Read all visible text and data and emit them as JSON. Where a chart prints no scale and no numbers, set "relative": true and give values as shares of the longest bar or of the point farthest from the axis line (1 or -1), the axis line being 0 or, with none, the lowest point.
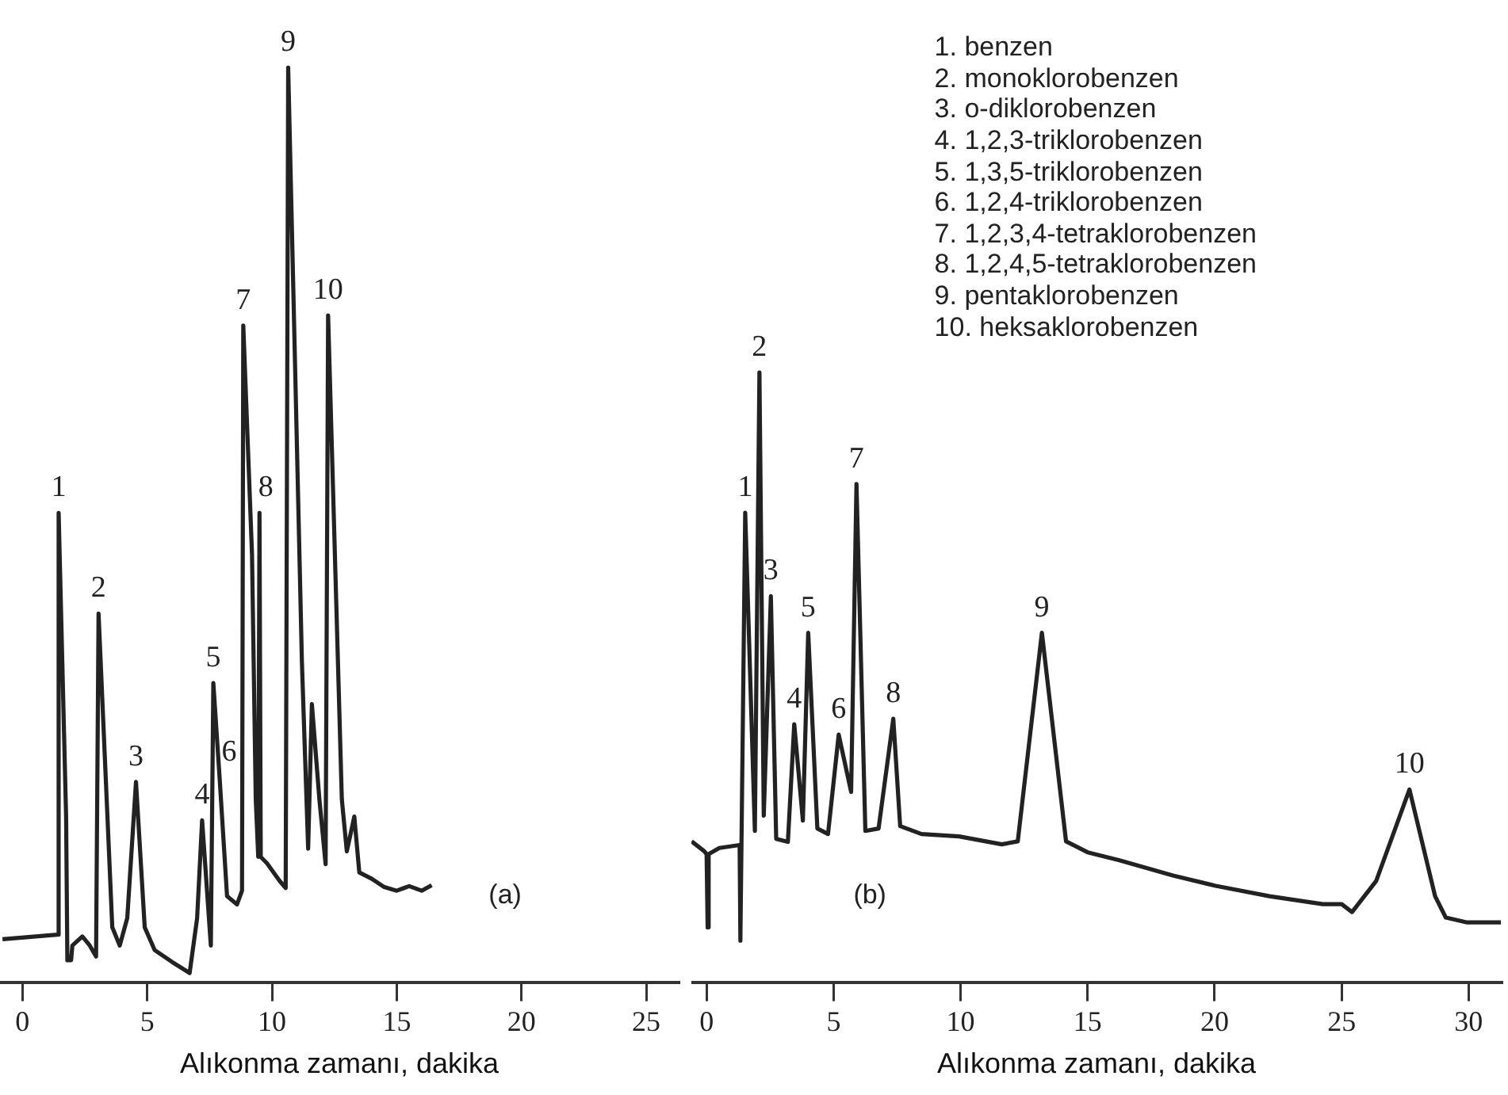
{
  "chart_data": [
    {
      "type": "line",
      "relative": true,
      "xlabel": "Alıkonma zamanı, dakika",
      "xlim": [
        -0.9,
        26.3
      ],
      "xticks": [
        0,
        5,
        10,
        15,
        20,
        25
      ],
      "series": [
        {
          "color": "#222222",
          "x": [
            -0.8,
            1.4,
            1.45,
            1.75,
            1.8,
            1.95,
            2.0,
            2.4,
            2.7,
            2.95,
            3.05,
            3.6,
            3.9,
            4.2,
            4.55,
            4.9,
            5.3,
            6.0,
            6.7,
            7.0,
            7.2,
            7.55,
            7.65,
            7.9,
            8.2,
            8.6,
            8.8,
            8.85,
            9.2,
            9.35,
            9.45,
            9.5,
            9.55,
            9.8,
            10.3,
            10.55,
            10.65,
            11.2,
            11.45,
            11.6,
            11.9,
            12.15,
            12.25,
            12.8,
            13.0,
            13.3,
            13.5,
            14.0,
            14.5,
            15.0,
            15.5,
            16.0,
            16.4
          ],
          "values": [
            0.047,
            0.052,
            0.513,
            0.18,
            0.024,
            0.024,
            0.04,
            0.05,
            0.04,
            0.028,
            0.403,
            0.06,
            0.04,
            0.07,
            0.219,
            0.06,
            0.035,
            0.022,
            0.01,
            0.07,
            0.177,
            0.04,
            0.327,
            0.224,
            0.094,
            0.085,
            0.1,
            0.718,
            0.468,
            0.2,
            0.137,
            0.513,
            0.137,
            0.13,
            0.111,
            0.103,
            1,
            0.35,
            0.146,
            0.304,
            0.2,
            0.129,
            0.729,
            0.2,
            0.143,
            0.181,
            0.12,
            0.113,
            0.104,
            0.1,
            0.105,
            0.1,
            0.106
          ]
        }
      ],
      "annotations": [
        "(a)",
        {
          "text": "1",
          "x": 1.45,
          "y": 0.513
        },
        {
          "text": "2",
          "x": 3.05,
          "y": 0.403
        },
        {
          "text": "3",
          "x": 4.55,
          "y": 0.219
        },
        {
          "text": "4",
          "x": 7.2,
          "y": 0.177
        },
        {
          "text": "5",
          "x": 7.65,
          "y": 0.327
        },
        {
          "text": "6",
          "x": 7.9,
          "y": 0.224
        },
        {
          "text": "7",
          "x": 8.85,
          "y": 0.718
        },
        {
          "text": "8",
          "x": 9.5,
          "y": 0.513
        },
        {
          "text": "9",
          "x": 10.65,
          "y": 1
        },
        {
          "text": "10",
          "x": 12.25,
          "y": 0.729
        }
      ]
    },
    {
      "type": "line",
      "relative": true,
      "xlabel": "Alıkonma zamanı, dakika",
      "xlim": [
        -0.6,
        31.3
      ],
      "xticks": [
        0,
        5,
        10,
        15,
        20,
        25,
        30
      ],
      "series": [
        {
          "color": "#222222",
          "x": [
            -0.59,
            -0.1,
            0.0,
            0.04,
            0.08,
            0.5,
            1.3,
            1.33,
            1.52,
            1.9,
            2.08,
            2.25,
            2.53,
            2.74,
            3.2,
            3.45,
            3.79,
            4.0,
            4.36,
            4.78,
            5.2,
            5.69,
            5.9,
            6.25,
            6.77,
            7.35,
            7.62,
            8.46,
            9.94,
            11.62,
            12.25,
            13.2,
            14.15,
            15.0,
            16.25,
            18.36,
            20.04,
            22.16,
            24.26,
            25.0,
            25.41,
            26.36,
            27.67,
            28.68,
            29.1,
            29.94,
            31.27
          ],
          "values": [
            0.231,
            0.215,
            0.21,
            0.09,
            0.21,
            0.22,
            0.225,
            0.068,
            0.77,
            0.248,
            1,
            0.273,
            0.633,
            0.235,
            0.23,
            0.423,
            0.265,
            0.573,
            0.252,
            0.243,
            0.406,
            0.312,
            0.817,
            0.248,
            0.252,
            0.432,
            0.256,
            0.243,
            0.239,
            0.226,
            0.231,
            0.573,
            0.231,
            0.213,
            0.2,
            0.175,
            0.158,
            0.141,
            0.128,
            0.128,
            0.115,
            0.166,
            0.316,
            0.141,
            0.106,
            0.098,
            0.098
          ]
        }
      ],
      "annotations": [
        "(b)",
        "1. benzen",
        "2. monoklorobenzen",
        "3. o-diklorobenzen",
        "4. 1,2,3-triklorobenzen",
        "5. 1,3,5-triklorobenzen",
        "6. 1,2,4-triklorobenzen",
        "7. 1,2,3,4-tetraklorobenzen",
        "8. 1,2,4,5-tetraklorobenzen",
        "9. pentaklorobenzen",
        "10. heksaklorobenzen",
        {
          "text": "1",
          "x": 1.52,
          "y": 0.77
        },
        {
          "text": "2",
          "x": 2.08,
          "y": 1
        },
        {
          "text": "3",
          "x": 2.53,
          "y": 0.633
        },
        {
          "text": "4",
          "x": 3.45,
          "y": 0.423
        },
        {
          "text": "5",
          "x": 4.0,
          "y": 0.573
        },
        {
          "text": "6",
          "x": 5.2,
          "y": 0.406
        },
        {
          "text": "7",
          "x": 5.9,
          "y": 0.817
        },
        {
          "text": "8",
          "x": 7.35,
          "y": 0.432
        },
        {
          "text": "9",
          "x": 13.2,
          "y": 0.573
        },
        {
          "text": "10",
          "x": 27.67,
          "y": 0.316
        }
      ]
    }
  ]
}
